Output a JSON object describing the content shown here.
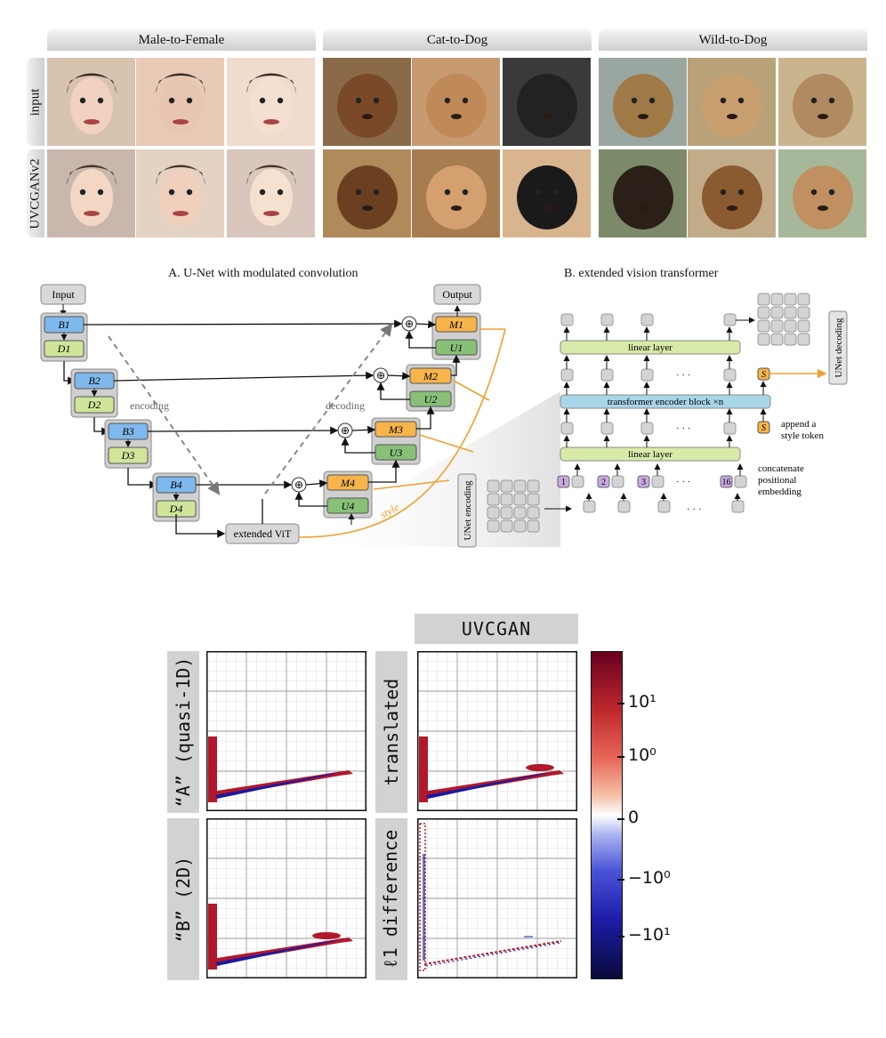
{
  "gallery": {
    "columns": [
      "Male-to-Female",
      "Cat-to-Dog",
      "Wild-to-Dog"
    ],
    "rows": [
      "input",
      "UVCGANv2"
    ]
  },
  "diagram": {
    "title_a": "A. U-Net with modulated convolution",
    "title_b": "B. extended vision transformer",
    "input_label": "Input",
    "output_label": "Output",
    "encoding_label": "encoding",
    "decoding_label": "decoding",
    "style_label": "style",
    "vit_label": "extended ViT",
    "unet_encoding": "UNet encoding",
    "unet_decoding": "UNet decoding",
    "linear_layer": "linear layer",
    "transformer_block": "transformer encoder block ×n",
    "style_token": "S",
    "append_note": [
      "append a",
      "style token"
    ],
    "concat_note": [
      "concatenate",
      "positional",
      "embedding"
    ],
    "ellipsis": "· · ·",
    "pos_tokens": [
      "1",
      "2",
      "3",
      "16"
    ],
    "enc_blocks": [
      {
        "b": "B",
        "d": "D",
        "sub": "1"
      },
      {
        "b": "B",
        "d": "D",
        "sub": "2"
      },
      {
        "b": "B",
        "d": "D",
        "sub": "3"
      },
      {
        "b": "B",
        "d": "D",
        "sub": "4"
      }
    ],
    "dec_blocks": [
      {
        "m": "M",
        "u": "U",
        "sub": "1"
      },
      {
        "m": "M",
        "u": "U",
        "sub": "2"
      },
      {
        "m": "M",
        "u": "U",
        "sub": "3"
      },
      {
        "m": "M",
        "u": "U",
        "sub": "4"
      }
    ],
    "plus": "⊕"
  },
  "results": {
    "header": "UVCGAN",
    "row_labels": [
      "“A” (quasi-1D)",
      "“B” (2D)"
    ],
    "col_labels": [
      "translated",
      "ℓ1 difference"
    ],
    "colorbar_ticks": [
      "10¹",
      "10⁰",
      "0",
      "−10⁰",
      "−10¹"
    ],
    "colors": {
      "positive": "#b2182b",
      "negative": "#1a1aa0"
    }
  }
}
